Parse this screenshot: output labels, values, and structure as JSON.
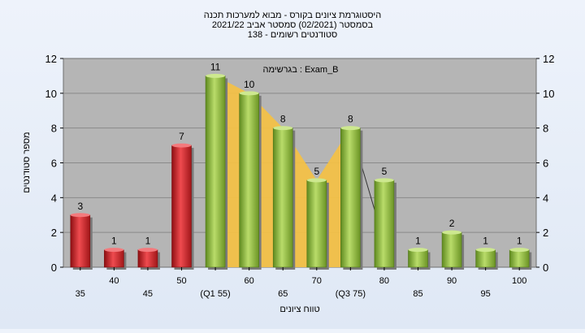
{
  "chart_data": {
    "type": "bar",
    "title_lines": [
      "היסטוגרמת ציונים בקורס - מבוא למערכות תכנה",
      "בסמסטר  (02/2021)  סמסטר אביב 2021/22",
      "סטודנטים רשומים - 138"
    ],
    "annotation": "בגרשימה : Exam_B",
    "xlabel": "טווח ציונים",
    "ylabel": "מספר סטודנטים",
    "ylim": [
      0,
      12
    ],
    "yticks": [
      0,
      2,
      4,
      6,
      8,
      10,
      12
    ],
    "grid": true,
    "categories": [
      "35",
      "40",
      "45",
      "50",
      "(Q1 55)",
      "60",
      "65",
      "70",
      "(Q3 75)",
      "80",
      "85",
      "90",
      "95",
      "100"
    ],
    "values": [
      3,
      1,
      1,
      7,
      11,
      10,
      8,
      5,
      8,
      5,
      1,
      2,
      1,
      1
    ],
    "bar_colors": [
      "red",
      "red",
      "red",
      "red",
      "green",
      "green",
      "green",
      "green",
      "green",
      "green",
      "green",
      "green",
      "green",
      "green"
    ],
    "colors": {
      "red": "#d8262b",
      "green": "#8dbb3c",
      "area": "#f5c144",
      "plot_bg": "#b5b5b5",
      "grid": "#8a8a8a"
    }
  }
}
